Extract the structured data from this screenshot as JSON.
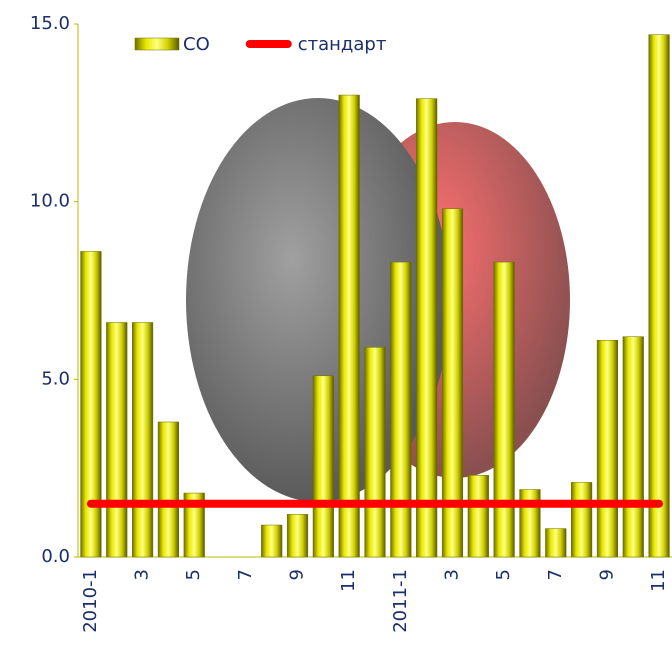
{
  "chart_data": {
    "type": "bar",
    "categories": [
      "2010-1",
      null,
      "3",
      null,
      "5",
      null,
      "7",
      null,
      "9",
      null,
      "11",
      null,
      "2011-1",
      null,
      "3",
      null,
      "5",
      null,
      "7",
      null,
      "9",
      null,
      "11"
    ],
    "series": [
      {
        "name": "CO",
        "type": "bar",
        "color": "#d4d400",
        "values": [
          8.6,
          6.6,
          6.6,
          3.8,
          1.8,
          null,
          null,
          0.9,
          1.2,
          5.1,
          13.0,
          5.9,
          8.3,
          12.9,
          9.8,
          2.3,
          8.3,
          1.9,
          0.8,
          2.1,
          6.1,
          6.2,
          14.7
        ]
      },
      {
        "name": "стандарт",
        "type": "line",
        "color": "#ff0000",
        "values": [
          1.5,
          1.5,
          1.5,
          1.5,
          1.5,
          1.5,
          1.5,
          1.5,
          1.5,
          1.5,
          1.5,
          1.5,
          1.5,
          1.5,
          1.5,
          1.5,
          1.5,
          1.5,
          1.5,
          1.5,
          1.5,
          1.5,
          1.5
        ]
      }
    ],
    "ylim": [
      0,
      15
    ],
    "yticks": [
      {
        "value": 0,
        "label": "0.0"
      },
      {
        "value": 5,
        "label": "5.0"
      },
      {
        "value": 10,
        "label": "10.0"
      },
      {
        "value": 15,
        "label": "15.0"
      }
    ],
    "legend": "top"
  }
}
